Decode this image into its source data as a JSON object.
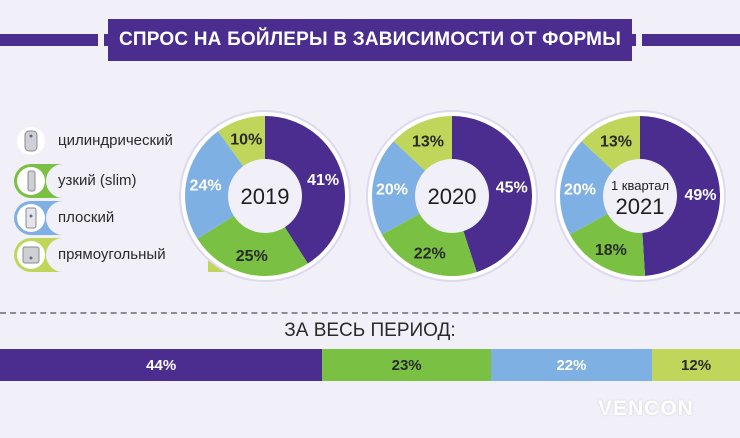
{
  "title": "СПРОС НА БОЙЛЕРЫ В ЗАВИСИМОСТИ ОТ ФОРМЫ",
  "legend": [
    {
      "label": "цилиндрический",
      "color": "#4a2d8f",
      "icon": "cylindrical-boiler-icon"
    },
    {
      "label": "узкий (slim)",
      "color": "#7ac143",
      "icon": "slim-boiler-icon"
    },
    {
      "label": "плоский",
      "color": "#7fb0e3",
      "icon": "flat-boiler-icon"
    },
    {
      "label": "прямоугольный",
      "color": "#bfd65a",
      "icon": "rectangular-boiler-icon"
    }
  ],
  "chart_data": [
    {
      "type": "pie",
      "center_label": [
        "2019"
      ],
      "slices": [
        {
          "name": "цилиндрический",
          "value": 41,
          "label": "41%"
        },
        {
          "name": "узкий (slim)",
          "value": 25,
          "label": "25%"
        },
        {
          "name": "плоский",
          "value": 24,
          "label": "24%"
        },
        {
          "name": "прямоугольный",
          "value": 10,
          "label": "10%"
        }
      ]
    },
    {
      "type": "pie",
      "center_label": [
        "2020"
      ],
      "slices": [
        {
          "name": "цилиндрический",
          "value": 45,
          "label": "45%"
        },
        {
          "name": "узкий (slim)",
          "value": 22,
          "label": "22%"
        },
        {
          "name": "плоский",
          "value": 20,
          "label": "20%"
        },
        {
          "name": "прямоугольный",
          "value": 13,
          "label": "13%"
        }
      ]
    },
    {
      "type": "pie",
      "center_label": [
        "1 квартал",
        "2021"
      ],
      "slices": [
        {
          "name": "цилиндрический",
          "value": 49,
          "label": "49%"
        },
        {
          "name": "узкий (slim)",
          "value": 18,
          "label": "18%"
        },
        {
          "name": "плоский",
          "value": 20,
          "label": "20%"
        },
        {
          "name": "прямоугольный",
          "value": 13,
          "label": "13%"
        }
      ]
    },
    {
      "type": "bar",
      "stacked": true,
      "title": "ЗА ВЕСЬ ПЕРИОД:",
      "series": [
        {
          "name": "цилиндрический",
          "value": 44,
          "label": "44%"
        },
        {
          "name": "узкий (slim)",
          "value": 23,
          "label": "23%"
        },
        {
          "name": "плоский",
          "value": 22,
          "label": "22%"
        },
        {
          "name": "прямоугольный",
          "value": 12,
          "label": "12%"
        }
      ]
    }
  ],
  "logo": "VENCON"
}
